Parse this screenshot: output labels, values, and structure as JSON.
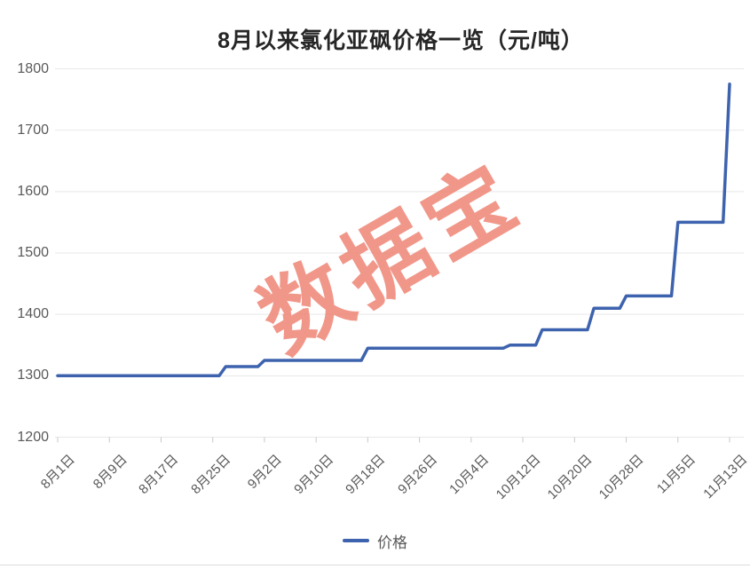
{
  "title": "8月以来氯化亚砜价格一览（元/吨）",
  "watermark": "数据宝",
  "legend": {
    "label": "价格"
  },
  "colors": {
    "line": "#3e63ae",
    "watermark": "#ef8576",
    "grid": "#e8e8e8",
    "tick": "#c9c9c9",
    "axis_label": "#595959",
    "title": "#262626",
    "background": "#ffffff"
  },
  "chart_data": {
    "type": "line",
    "line_style": "step",
    "title": "8月以来氯化亚砜价格一览（元/吨）",
    "xlabel": "",
    "ylabel": "",
    "ylim": [
      1200,
      1800
    ],
    "y_ticks": [
      1200,
      1300,
      1400,
      1500,
      1600,
      1700,
      1800
    ],
    "x_tick_labels": [
      "8月1日",
      "8月9日",
      "8月17日",
      "8月25日",
      "9月2日",
      "9月10日",
      "9月18日",
      "9月26日",
      "10月4日",
      "10月12日",
      "10月20日",
      "10月28日",
      "11月5日",
      "11月13日"
    ],
    "x_tick_days": [
      0,
      8,
      16,
      24,
      32,
      40,
      48,
      56,
      64,
      72,
      80,
      88,
      96,
      104
    ],
    "x_domain_days": [
      0,
      104
    ],
    "grid": "horizontal",
    "legend_position": "bottom",
    "series": [
      {
        "name": "价格",
        "points_day_value": [
          [
            0,
            1300
          ],
          [
            25,
            1300
          ],
          [
            26,
            1315
          ],
          [
            31,
            1315
          ],
          [
            32,
            1325
          ],
          [
            47,
            1325
          ],
          [
            48,
            1345
          ],
          [
            69,
            1345
          ],
          [
            70,
            1350
          ],
          [
            74,
            1350
          ],
          [
            75,
            1375
          ],
          [
            82,
            1375
          ],
          [
            83,
            1410
          ],
          [
            87,
            1410
          ],
          [
            88,
            1430
          ],
          [
            95,
            1430
          ],
          [
            96,
            1550
          ],
          [
            103,
            1550
          ],
          [
            104,
            1775
          ]
        ],
        "segments": [
          {
            "from": "8月1日",
            "to": "8月26日",
            "value": 1300
          },
          {
            "from": "8月27日",
            "to": "9月1日",
            "value": 1315
          },
          {
            "from": "9月2日",
            "to": "9月17日",
            "value": 1325
          },
          {
            "from": "9月18日",
            "to": "10月9日",
            "value": 1345
          },
          {
            "from": "10月10日",
            "to": "10月14日",
            "value": 1350
          },
          {
            "from": "10月15日",
            "to": "10月22日",
            "value": 1375
          },
          {
            "from": "10月23日",
            "to": "10月27日",
            "value": 1410
          },
          {
            "from": "10月28日",
            "to": "11月4日",
            "value": 1430
          },
          {
            "from": "11月5日",
            "to": "11月12日",
            "value": 1550
          },
          {
            "from": "11月13日",
            "to": "11月13日",
            "value": 1775
          }
        ]
      }
    ]
  }
}
